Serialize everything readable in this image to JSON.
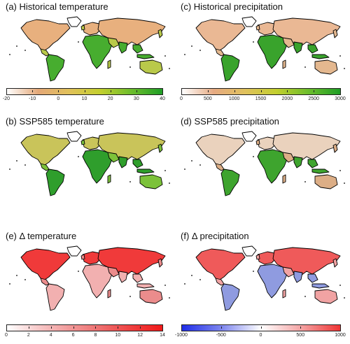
{
  "panels": [
    {
      "title": "(a) Historical temperature",
      "land_fill": "#b9c94a",
      "north_fill": "#e8b07e",
      "tropic_fill": "#47ad2f",
      "colorbar": {
        "gradient": [
          "#ffffff",
          "#e4a878",
          "#e1c15a",
          "#c3cf2e",
          "#6cbd2c",
          "#1f9e26"
        ],
        "ticks": [
          "-20",
          "-10",
          "0",
          "10",
          "20",
          "30",
          "40"
        ]
      }
    },
    {
      "title": "(c) Historical precipitation",
      "land_fill": "#e4b88f",
      "north_fill": "#eab894",
      "tropic_fill": "#39a32c",
      "colorbar": {
        "gradient": [
          "#ffffff",
          "#e6aa82",
          "#e0c15c",
          "#c2cf2e",
          "#6cbd2c",
          "#1f9e26"
        ],
        "ticks": [
          "0",
          "500",
          "1000",
          "1500",
          "2000",
          "2500",
          "3000"
        ]
      }
    },
    {
      "title": "(b) SSP585 temperature",
      "land_fill": "#7cc23a",
      "north_fill": "#c9c45a",
      "tropic_fill": "#2f9e2c"
    },
    {
      "title": "(d) SSP585 precipitation",
      "land_fill": "#dcae86",
      "north_fill": "#ead2bd",
      "tropic_fill": "#3ea42e"
    },
    {
      "title": "(e) Δ temperature",
      "land_fill": "#eb8c8c",
      "north_fill": "#f03a3a",
      "tropic_fill": "#f2b0b0",
      "colorbar": {
        "gradient": [
          "#ffffff",
          "#f7c9c9",
          "#f19a9a",
          "#ee6e6e",
          "#ef4040",
          "#f01a1a"
        ],
        "ticks": [
          "0",
          "2",
          "4",
          "6",
          "8",
          "10",
          "12",
          "14"
        ]
      }
    },
    {
      "title": "(f) Δ precipitation",
      "land_fill": "#f1a3a3",
      "north_fill": "#ef5a5a",
      "tropic_fill": "#8f9be0",
      "colorbar": {
        "gradient": [
          "#1f2ee8",
          "#7e86ee",
          "#ffffff",
          "#f4a5a5",
          "#ef3434"
        ],
        "ticks": [
          "-1000",
          "-500",
          "0",
          "500",
          "1000"
        ]
      }
    }
  ]
}
